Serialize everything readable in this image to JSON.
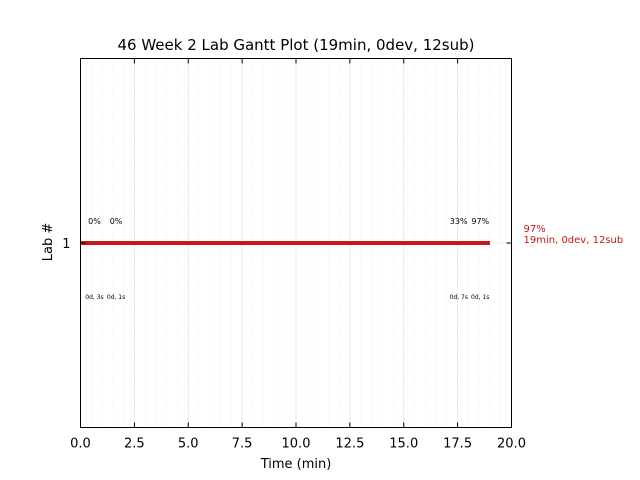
{
  "chart_data": {
    "type": "gantt",
    "title": "46 Week 2 Lab Gantt Plot (19min, 0dev, 12sub)",
    "xlabel": "Time (min)",
    "ylabel": "Lab #",
    "xlim": [
      0,
      20
    ],
    "xticks": [
      0.0,
      2.5,
      5.0,
      7.5,
      10.0,
      12.5,
      15.0,
      17.5,
      20.0
    ],
    "xtick_labels": [
      "0.0",
      "2.5",
      "5.0",
      "7.5",
      "10.0",
      "12.5",
      "15.0",
      "17.5",
      "20.0"
    ],
    "minor_grid_step": 0.5,
    "grid": true,
    "rows": [
      {
        "label": "1",
        "start": 0,
        "end": 19,
        "color": "#c41a1a",
        "right_annotation_line1": "97%",
        "right_annotation_line2": "19min, 0dev, 12sub",
        "markers": [
          {
            "x": 0.65,
            "top_label": "0%",
            "bottom_label": "0d, 3s"
          },
          {
            "x": 1.65,
            "top_label": "0%",
            "bottom_label": "0d, 1s"
          },
          {
            "x": 17.55,
            "top_label": "33%",
            "bottom_label": "0d, 7s"
          },
          {
            "x": 18.55,
            "top_label": "97%",
            "bottom_label": "0d, 1s"
          }
        ]
      }
    ]
  }
}
